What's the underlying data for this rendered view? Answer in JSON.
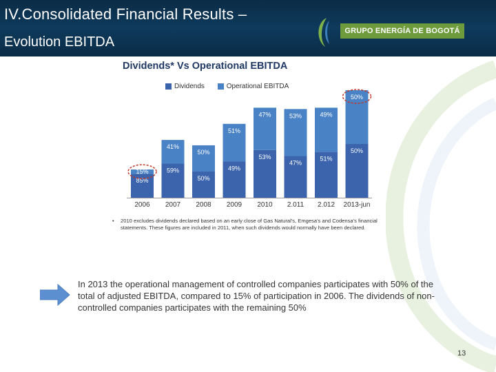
{
  "header": {
    "title_line1": "IV.Consolidated Financial Results –",
    "title_line2": "Evolution EBITDA",
    "logo_text": "GRUPO ENERGÍA DE BOGOTÁ",
    "background": "#0e3a5c"
  },
  "colors": {
    "dividends": "#3b64ad",
    "operational": "#4a82c6",
    "highlight_circle": "#c0392b",
    "logo_green": "#6e9b3c"
  },
  "footnote": {
    "bullet": "•",
    "text": "2010 excludes dividends declared based on an early close of Gas Natural's, Emgesa's and Codensa's financial statements. These figures are included in 2011, when such dividends would normally have been declared."
  },
  "summary": {
    "text": "In 2013 the operational management of controlled companies participates with 50% of the total of adjusted EBITDA, compared to 15% of participation in 2006. The dividends of non-controlled companies participates with the remaining 50%"
  },
  "page_number": "13",
  "chart_data": {
    "type": "bar",
    "stacked": true,
    "title": "Dividends* Vs Operational EBITDA",
    "legend": "top",
    "categories": [
      "2006",
      "2007",
      "2008",
      "2009",
      "2010",
      "2.011",
      "2.012",
      "2013-jun"
    ],
    "series": [
      {
        "name": "Dividends",
        "values": [
          85,
          59,
          50,
          49,
          53,
          47,
          51,
          50
        ],
        "labels": [
          "85%",
          "59%",
          "50%",
          "49%",
          "53%",
          "47%",
          "51%",
          "50%"
        ]
      },
      {
        "name": "Operational EBITDA",
        "values": [
          15,
          41,
          50,
          51,
          47,
          53,
          49,
          50
        ],
        "labels": [
          "15%",
          "41%",
          "50%",
          "51%",
          "47%",
          "53%",
          "49%",
          "50%"
        ]
      }
    ],
    "totals_relative": [
      0.21,
      0.43,
      0.39,
      0.55,
      0.67,
      0.66,
      0.67,
      0.8
    ],
    "highlighted": [
      {
        "category": "2006",
        "series": "Operational EBITDA"
      },
      {
        "category": "2013-jun",
        "series": "Operational EBITDA"
      }
    ]
  }
}
